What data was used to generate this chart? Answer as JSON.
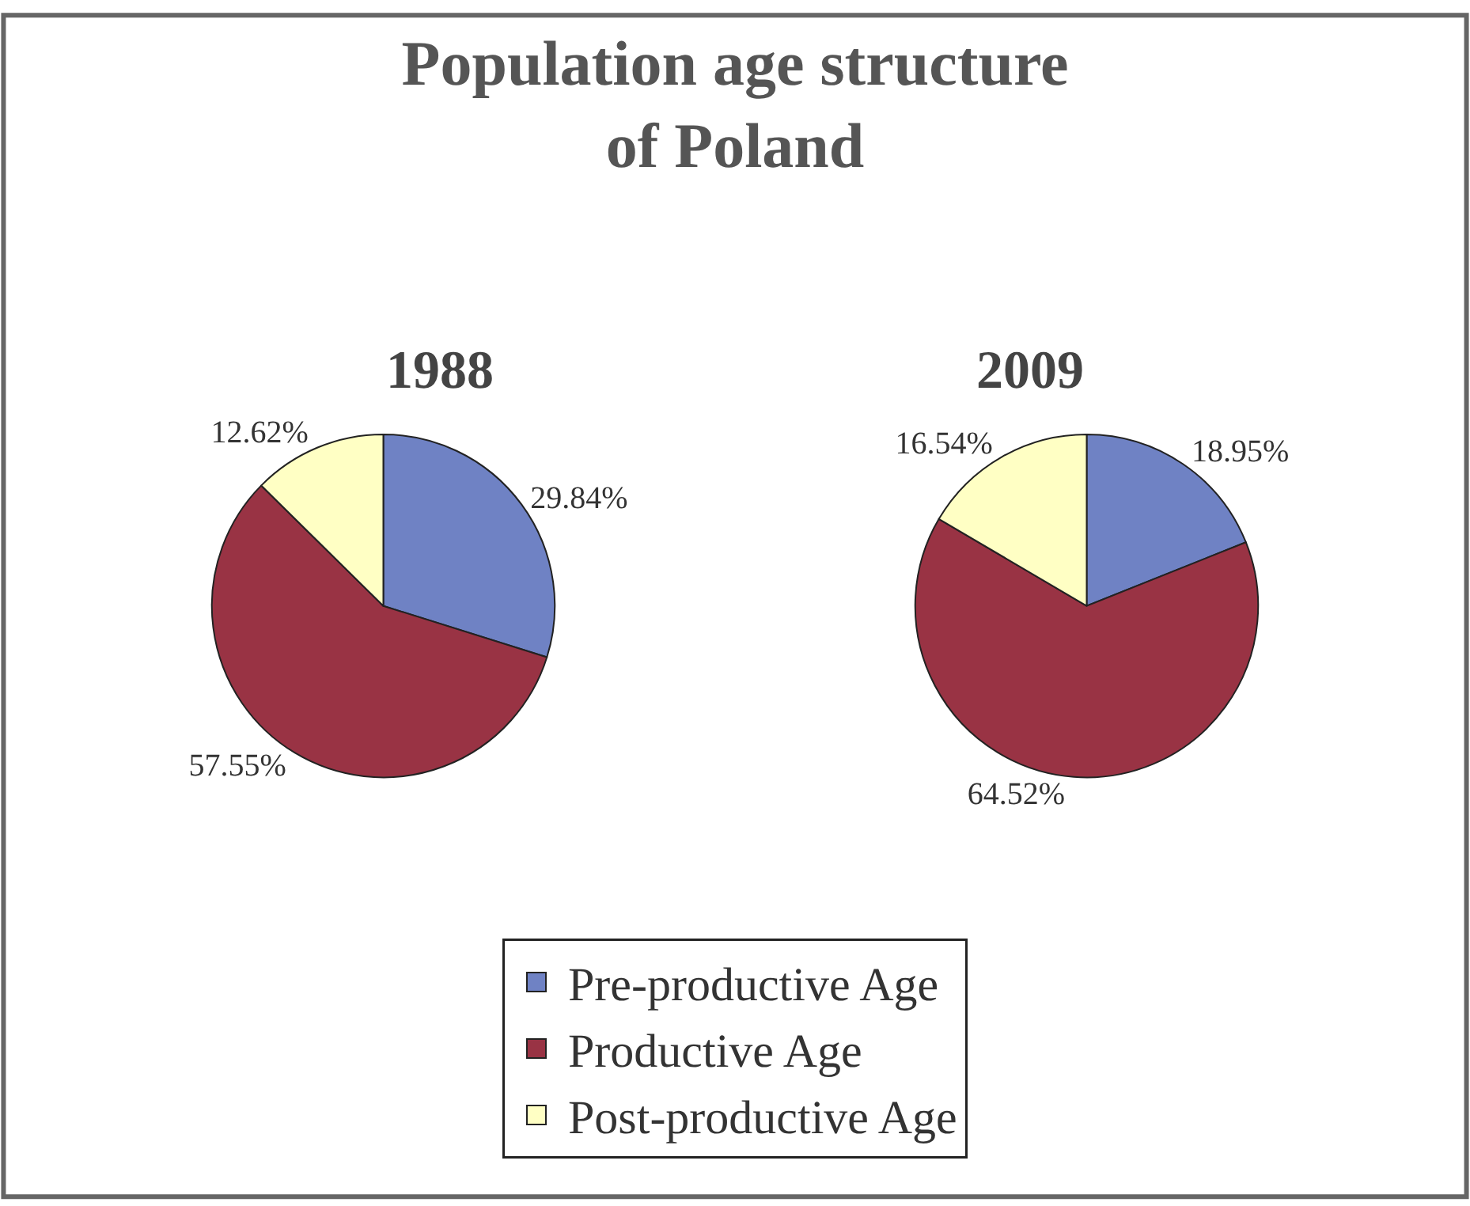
{
  "chart_data": [
    {
      "type": "pie",
      "title": "Population age structure of Poland",
      "subtitle": "1988",
      "categories": [
        "Pre-productive Age",
        "Productive Age",
        "Post-productive Age"
      ],
      "values": [
        29.84,
        57.55,
        12.62
      ],
      "colors": [
        "#6f82c4",
        "#993344",
        "#ffffc4"
      ],
      "value_labels": [
        "29.84%",
        "57.55%",
        "12.62%"
      ],
      "legend": "bottom"
    },
    {
      "type": "pie",
      "subtitle": "2009",
      "values": [
        18.95,
        64.52,
        16.54
      ],
      "colors": [
        "#6f82c4",
        "#993344",
        "#ffffc4"
      ],
      "value_labels": [
        "18.95%",
        "64.52%",
        "16.54%"
      ]
    }
  ]
}
